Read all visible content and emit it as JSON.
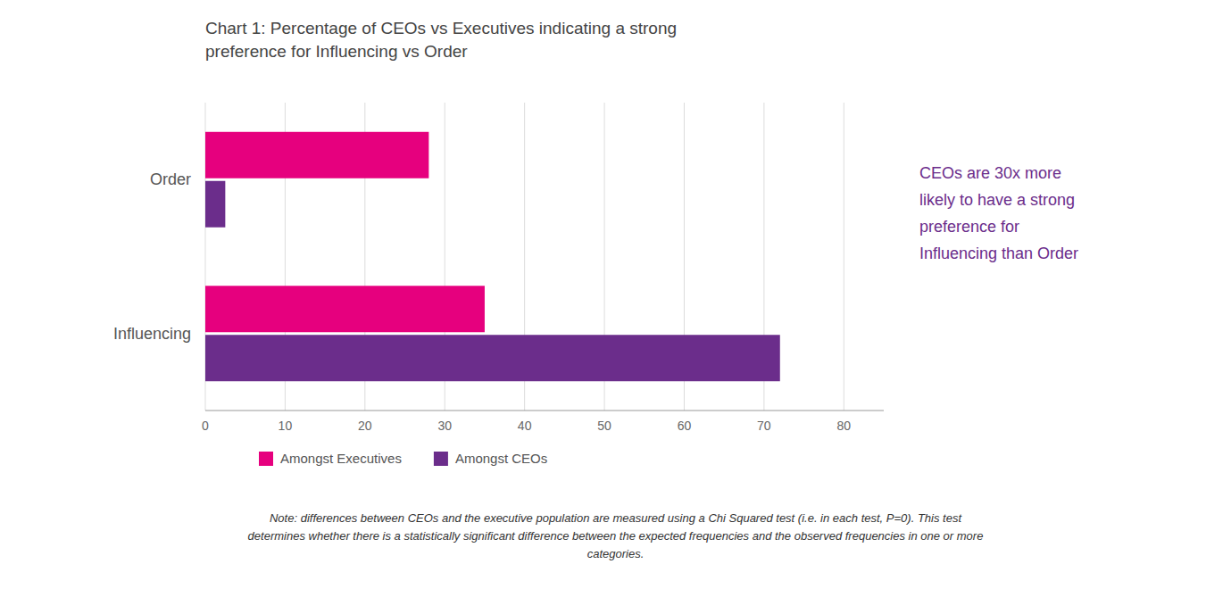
{
  "chart_data": {
    "type": "bar",
    "orientation": "horizontal",
    "title": "Chart 1: Percentage of CEOs vs Executives indicating a strong\npreference for Influencing vs Order",
    "categories": [
      "Order",
      "Influencing"
    ],
    "series": [
      {
        "name": "Amongst Executives",
        "color": "#E6007E",
        "values": [
          28,
          35
        ]
      },
      {
        "name": "Amongst CEOs",
        "color": "#6B2D8B",
        "values": [
          2.5,
          72
        ]
      }
    ],
    "xlim": [
      0,
      85
    ],
    "xticks": [
      0,
      10,
      20,
      30,
      40,
      50,
      60,
      70,
      80
    ],
    "grid": true,
    "legend": "bottom",
    "annotations": [
      "CEOs are 30x more\nlikely to have a strong\npreference for\nInfluencing than Order",
      "Note: differences between CEOs and the executive population are measured using a Chi Squared test (i.e. in each test, P=0). This test\ndetermines whether there is a statistically significant difference between the expected frequencies and the observed frequencies in one or more\ncategories."
    ]
  }
}
